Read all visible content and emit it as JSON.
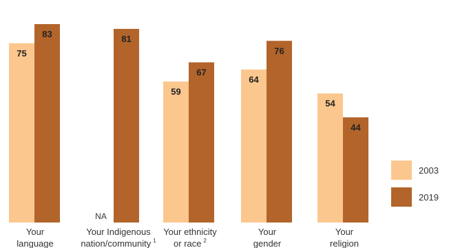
{
  "chart_data": {
    "type": "bar",
    "categories": [
      {
        "line1": "Your",
        "line2": "language",
        "sup": ""
      },
      {
        "line1": "Your Indigenous",
        "line2": "nation/community",
        "sup": "1"
      },
      {
        "line1": "Your ethnicity",
        "line2": "or race",
        "sup": "2"
      },
      {
        "line1": "Your",
        "line2": "gender",
        "sup": ""
      },
      {
        "line1": "Your",
        "line2": "religion",
        "sup": ""
      }
    ],
    "series": [
      {
        "name": "2003",
        "color": "#fcc78e",
        "values": [
          75,
          null,
          59,
          64,
          54
        ]
      },
      {
        "name": "2019",
        "color": "#b2642a",
        "values": [
          83,
          81,
          67,
          76,
          44
        ]
      }
    ],
    "missing_label": "NA",
    "ylim": [
      0,
      85
    ],
    "legend": "right",
    "grid": false,
    "xlabel": "",
    "ylabel": ""
  }
}
